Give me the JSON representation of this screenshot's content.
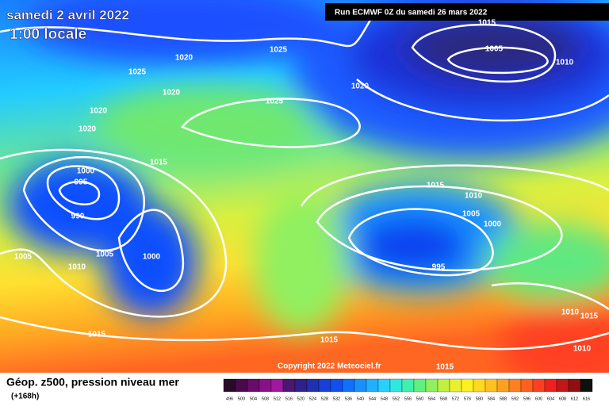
{
  "map": {
    "title": "samedi 2 avril 2022",
    "subtitle": "1:00 locale",
    "run": "Run ECMWF 0Z du samedi 26 mars 2022",
    "copyright": "Copyright 2022 Meteociel.fr",
    "isobar_labels": [
      "1015",
      "1005",
      "1010",
      "1025",
      "1020",
      "1025",
      "1020",
      "1020",
      "1025",
      "1020",
      "1020",
      "1015",
      "1000",
      "995",
      "990",
      "1015",
      "1010",
      "1005",
      "1000",
      "1005",
      "1000",
      "1005",
      "1010",
      "995",
      "1010",
      "1015",
      "1015",
      "1015",
      "1015",
      "1010"
    ]
  },
  "legend": {
    "title": "Géop. z500, pression niveau mer",
    "lead": "(+168h)",
    "scale": [
      496,
      500,
      504,
      508,
      512,
      516,
      520,
      524,
      528,
      532,
      536,
      540,
      544,
      548,
      552,
      556,
      560,
      564,
      568,
      572,
      576,
      580,
      584,
      588,
      592,
      596,
      600,
      604,
      608,
      612,
      616
    ],
    "colors": [
      "#2a0a2a",
      "#4a0a4a",
      "#6a0a6a",
      "#8a108a",
      "#a018a0",
      "#4a1870",
      "#30208a",
      "#2030b0",
      "#1840d8",
      "#1050f0",
      "#1070ff",
      "#1890ff",
      "#20b0ff",
      "#28d0ff",
      "#30e8e0",
      "#40f0b0",
      "#60f080",
      "#90f060",
      "#c0f040",
      "#e8f030",
      "#fff020",
      "#ffd820",
      "#ffc020",
      "#ffa020",
      "#ff8020",
      "#ff6020",
      "#ff4020",
      "#f02020",
      "#c01818",
      "#901010",
      "#101010"
    ]
  }
}
